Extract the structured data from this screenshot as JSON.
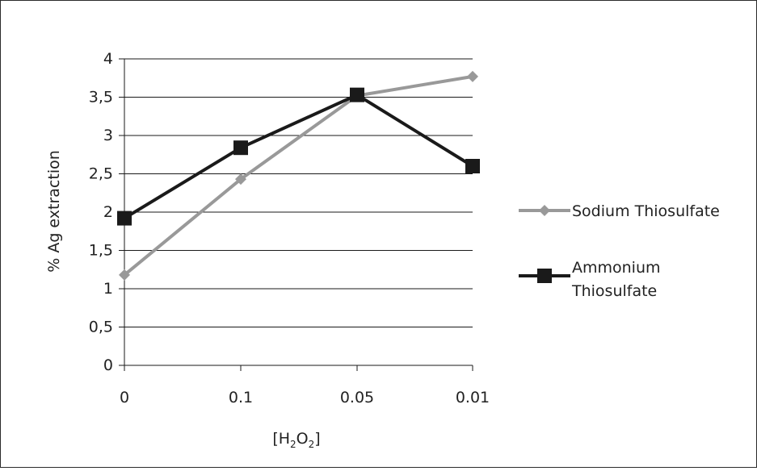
{
  "chart_data": {
    "type": "line",
    "categories": [
      "0",
      "0.1",
      "0.05",
      "0.01"
    ],
    "series": [
      {
        "name": "Sodium Thiosulfate",
        "values": [
          1.18,
          2.43,
          3.52,
          3.77
        ],
        "color": "#999999",
        "marker": "diamond"
      },
      {
        "name": "Ammonium Thiosulfate",
        "values": [
          1.92,
          2.84,
          3.53,
          2.6
        ],
        "color": "#1a1a1a",
        "marker": "square"
      }
    ],
    "yticks": [
      "0",
      "0,5",
      "1",
      "1,5",
      "2",
      "2,5",
      "3",
      "3,5",
      "4"
    ],
    "ylim": [
      0,
      4
    ],
    "ylabel": "% Ag extraction",
    "xlabel": {
      "open": "[H",
      "sub1": "2",
      "mid": "O",
      "sub2": "2",
      "close": "]"
    },
    "legend": {
      "position": "right",
      "labels": [
        [
          "Sodium Thiosulfate"
        ],
        [
          "Ammonium",
          "Thiosulfate"
        ]
      ]
    },
    "grid": true
  }
}
